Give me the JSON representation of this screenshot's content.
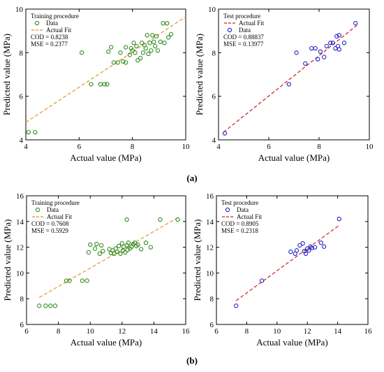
{
  "sublabels": [
    "(a)",
    "(b)"
  ],
  "chart_data": [
    {
      "type": "scatter",
      "title": "Training procedure",
      "xlabel": "Actual value (MPa)",
      "ylabel": "Predicted value (MPa)",
      "xlim": [
        4,
        10
      ],
      "ylim": [
        4,
        10
      ],
      "xticks": [
        4,
        6,
        8,
        10
      ],
      "yticks": [
        4,
        6,
        8,
        10
      ],
      "legend": [
        "Data",
        "Actual Fit"
      ],
      "stats": [
        "COD = 0.8238",
        "MSE = 0.2377"
      ],
      "points": [
        [
          4.1,
          4.35
        ],
        [
          4.35,
          4.35
        ],
        [
          6.1,
          8.0
        ],
        [
          6.45,
          6.55
        ],
        [
          6.8,
          6.55
        ],
        [
          6.95,
          6.55
        ],
        [
          7.05,
          6.55
        ],
        [
          7.1,
          8.05
        ],
        [
          7.2,
          8.25
        ],
        [
          7.3,
          7.55
        ],
        [
          7.45,
          7.55
        ],
        [
          7.55,
          8.0
        ],
        [
          7.65,
          7.6
        ],
        [
          7.75,
          7.55
        ],
        [
          7.75,
          8.25
        ],
        [
          7.9,
          7.9
        ],
        [
          7.95,
          8.2
        ],
        [
          8.0,
          8.1
        ],
        [
          8.05,
          8.45
        ],
        [
          8.1,
          8.0
        ],
        [
          8.15,
          8.3
        ],
        [
          8.2,
          7.65
        ],
        [
          8.3,
          7.75
        ],
        [
          8.35,
          8.45
        ],
        [
          8.4,
          8.0
        ],
        [
          8.45,
          8.35
        ],
        [
          8.5,
          8.2
        ],
        [
          8.55,
          8.8
        ],
        [
          8.6,
          7.95
        ],
        [
          8.65,
          8.45
        ],
        [
          8.7,
          8.1
        ],
        [
          8.75,
          8.8
        ],
        [
          8.8,
          8.5
        ],
        [
          8.85,
          8.3
        ],
        [
          8.9,
          8.75
        ],
        [
          8.95,
          8.1
        ],
        [
          9.05,
          8.5
        ],
        [
          9.15,
          9.35
        ],
        [
          9.2,
          8.45
        ],
        [
          9.3,
          9.35
        ],
        [
          9.35,
          8.7
        ],
        [
          9.45,
          8.85
        ]
      ],
      "fit": {
        "x": [
          4.0,
          10.0
        ],
        "y": [
          4.8,
          9.65
        ]
      }
    },
    {
      "type": "scatter",
      "title": "Test procedure",
      "xlabel": "Actual value (MPa)",
      "ylabel": "Predicted value (MPa)",
      "xlim": [
        4,
        10
      ],
      "ylim": [
        4,
        10
      ],
      "xticks": [
        4,
        6,
        8,
        10
      ],
      "yticks": [
        4,
        6,
        8,
        10
      ],
      "legend": [
        "Actual Fit",
        "Data"
      ],
      "stats": [
        "COD = 0.88837",
        "MSE = 0.13977"
      ],
      "points": [
        [
          4.25,
          4.3
        ],
        [
          6.8,
          6.55
        ],
        [
          7.1,
          8.0
        ],
        [
          7.45,
          7.5
        ],
        [
          7.7,
          8.2
        ],
        [
          7.85,
          8.2
        ],
        [
          7.95,
          7.7
        ],
        [
          8.05,
          8.05
        ],
        [
          8.2,
          7.8
        ],
        [
          8.3,
          8.3
        ],
        [
          8.45,
          8.45
        ],
        [
          8.55,
          8.45
        ],
        [
          8.65,
          8.2
        ],
        [
          8.7,
          8.75
        ],
        [
          8.75,
          8.3
        ],
        [
          8.8,
          8.15
        ],
        [
          8.8,
          8.8
        ],
        [
          9.0,
          8.45
        ],
        [
          9.45,
          9.35
        ]
      ],
      "fit": {
        "x": [
          4.2,
          9.5
        ],
        "y": [
          4.35,
          9.25
        ]
      }
    },
    {
      "type": "scatter",
      "title": "Training procedure",
      "xlabel": "Actual value (MPa)",
      "ylabel": "Predicted value (MPa)",
      "xlim": [
        6,
        16
      ],
      "ylim": [
        6,
        16
      ],
      "xticks": [
        6,
        8,
        10,
        12,
        14,
        16
      ],
      "yticks": [
        6,
        8,
        10,
        12,
        14,
        16
      ],
      "legend": [
        "Data",
        "Actual Fit"
      ],
      "stats": [
        "COD = 0.7608",
        "MSE = 0.5929"
      ],
      "points": [
        [
          6.8,
          7.45
        ],
        [
          7.2,
          7.45
        ],
        [
          7.5,
          7.45
        ],
        [
          7.8,
          7.45
        ],
        [
          8.5,
          9.4
        ],
        [
          8.7,
          9.4
        ],
        [
          9.5,
          9.4
        ],
        [
          9.8,
          9.4
        ],
        [
          9.9,
          11.6
        ],
        [
          10.0,
          12.2
        ],
        [
          10.3,
          11.9
        ],
        [
          10.4,
          12.25
        ],
        [
          10.6,
          11.5
        ],
        [
          10.7,
          12.15
        ],
        [
          10.8,
          11.7
        ],
        [
          11.2,
          11.85
        ],
        [
          11.3,
          11.55
        ],
        [
          11.4,
          11.75
        ],
        [
          11.5,
          11.5
        ],
        [
          11.6,
          11.9
        ],
        [
          11.7,
          11.65
        ],
        [
          11.8,
          12.1
        ],
        [
          11.9,
          11.5
        ],
        [
          12.0,
          12.3
        ],
        [
          12.05,
          11.75
        ],
        [
          12.1,
          12.05
        ],
        [
          12.2,
          11.6
        ],
        [
          12.3,
          12.15
        ],
        [
          12.35,
          11.8
        ],
        [
          12.4,
          12.35
        ],
        [
          12.5,
          11.9
        ],
        [
          12.6,
          12.05
        ],
        [
          12.7,
          12.25
        ],
        [
          12.8,
          12.35
        ],
        [
          12.9,
          12.1
        ],
        [
          13.0,
          12.2
        ],
        [
          13.2,
          11.85
        ],
        [
          13.5,
          12.35
        ],
        [
          13.8,
          12.0
        ],
        [
          12.3,
          14.15
        ],
        [
          14.4,
          14.15
        ],
        [
          15.5,
          14.15
        ]
      ],
      "fit": {
        "x": [
          6.8,
          15.5
        ],
        "y": [
          8.1,
          14.3
        ]
      }
    },
    {
      "type": "scatter",
      "title": "Test procedure",
      "xlabel": "Actual value (MPa)",
      "ylabel": "Predicted value (MPa)",
      "xlim": [
        6,
        16
      ],
      "ylim": [
        6,
        16
      ],
      "xticks": [
        6,
        8,
        10,
        12,
        14,
        16
      ],
      "yticks": [
        6,
        8,
        10,
        12,
        14,
        16
      ],
      "legend": [
        "Data",
        "Actual Fit"
      ],
      "stats": [
        "COD = 0.8905",
        "MSE = 0.2318"
      ],
      "points": [
        [
          7.3,
          7.45
        ],
        [
          9.0,
          9.4
        ],
        [
          10.9,
          11.65
        ],
        [
          11.2,
          11.5
        ],
        [
          11.3,
          11.75
        ],
        [
          11.5,
          12.15
        ],
        [
          11.7,
          12.3
        ],
        [
          11.8,
          11.7
        ],
        [
          11.9,
          11.5
        ],
        [
          12.0,
          11.9
        ],
        [
          12.1,
          11.75
        ],
        [
          12.2,
          12.05
        ],
        [
          12.3,
          11.95
        ],
        [
          12.5,
          12.0
        ],
        [
          12.9,
          12.35
        ],
        [
          13.1,
          12.05
        ],
        [
          14.1,
          14.2
        ]
      ],
      "fit": {
        "x": [
          7.3,
          14.1
        ],
        "y": [
          7.85,
          13.7
        ]
      }
    }
  ]
}
